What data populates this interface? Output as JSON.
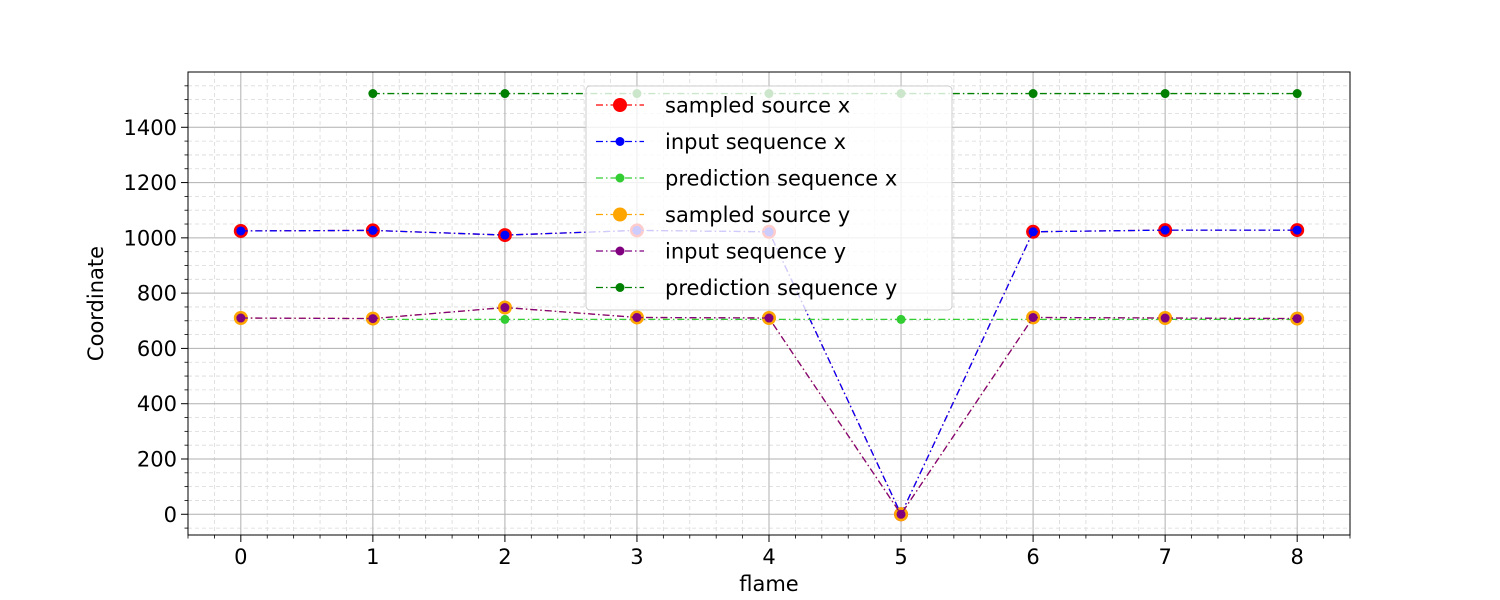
{
  "chart_data": {
    "type": "line",
    "title": "",
    "xlabel": "flame",
    "ylabel": "Coordinate",
    "x": [
      0,
      1,
      2,
      3,
      4,
      5,
      6,
      7,
      8
    ],
    "xlim": [
      -0.4,
      8.4
    ],
    "ylim": [
      -75,
      1600
    ],
    "x_ticks": [
      0,
      1,
      2,
      3,
      4,
      5,
      6,
      7,
      8
    ],
    "y_ticks": [
      0,
      200,
      400,
      600,
      800,
      1000,
      1200,
      1400
    ],
    "x_tick_labels": [
      "0",
      "1",
      "2",
      "3",
      "4",
      "5",
      "6",
      "7",
      "8"
    ],
    "y_tick_labels": [
      "0",
      "200",
      "400",
      "600",
      "800",
      "1000",
      "1200",
      "1400"
    ],
    "grid": "major solid, minor dashed",
    "legend_position": "upper-center",
    "series": [
      {
        "name": "sampled source x",
        "color": "#ff0000",
        "marker_size": "large",
        "x": [
          0,
          1,
          2,
          3,
          4,
          5,
          6,
          7,
          8
        ],
        "values": [
          1025,
          1027,
          1010,
          1027,
          1022,
          0,
          1022,
          1028,
          1028
        ]
      },
      {
        "name": "input sequence x",
        "color": "#0000ff",
        "marker_size": "small",
        "x": [
          0,
          1,
          2,
          3,
          4,
          5,
          6,
          7,
          8
        ],
        "values": [
          1025,
          1027,
          1010,
          1027,
          1022,
          0,
          1022,
          1028,
          1028
        ]
      },
      {
        "name": "prediction sequence x",
        "color": "#32cd32",
        "marker_size": "small",
        "x": [
          1,
          2,
          3,
          4,
          5,
          6,
          7,
          8
        ],
        "values": [
          705,
          705,
          705,
          705,
          705,
          705,
          705,
          705
        ]
      },
      {
        "name": "sampled source y",
        "color": "#ffa500",
        "marker_size": "large",
        "x": [
          0,
          1,
          2,
          3,
          4,
          5,
          6,
          7,
          8
        ],
        "values": [
          710,
          708,
          748,
          712,
          710,
          0,
          712,
          710,
          708
        ]
      },
      {
        "name": "input sequence y",
        "color": "#800080",
        "marker_size": "small",
        "x": [
          0,
          1,
          2,
          3,
          4,
          5,
          6,
          7,
          8
        ],
        "values": [
          710,
          708,
          748,
          712,
          710,
          0,
          712,
          710,
          708
        ]
      },
      {
        "name": "prediction sequence y",
        "color": "#008000",
        "marker_size": "small",
        "x": [
          1,
          2,
          3,
          4,
          5,
          6,
          7,
          8
        ],
        "values": [
          1522,
          1522,
          1522,
          1522,
          1522,
          1522,
          1522,
          1522
        ]
      }
    ]
  }
}
